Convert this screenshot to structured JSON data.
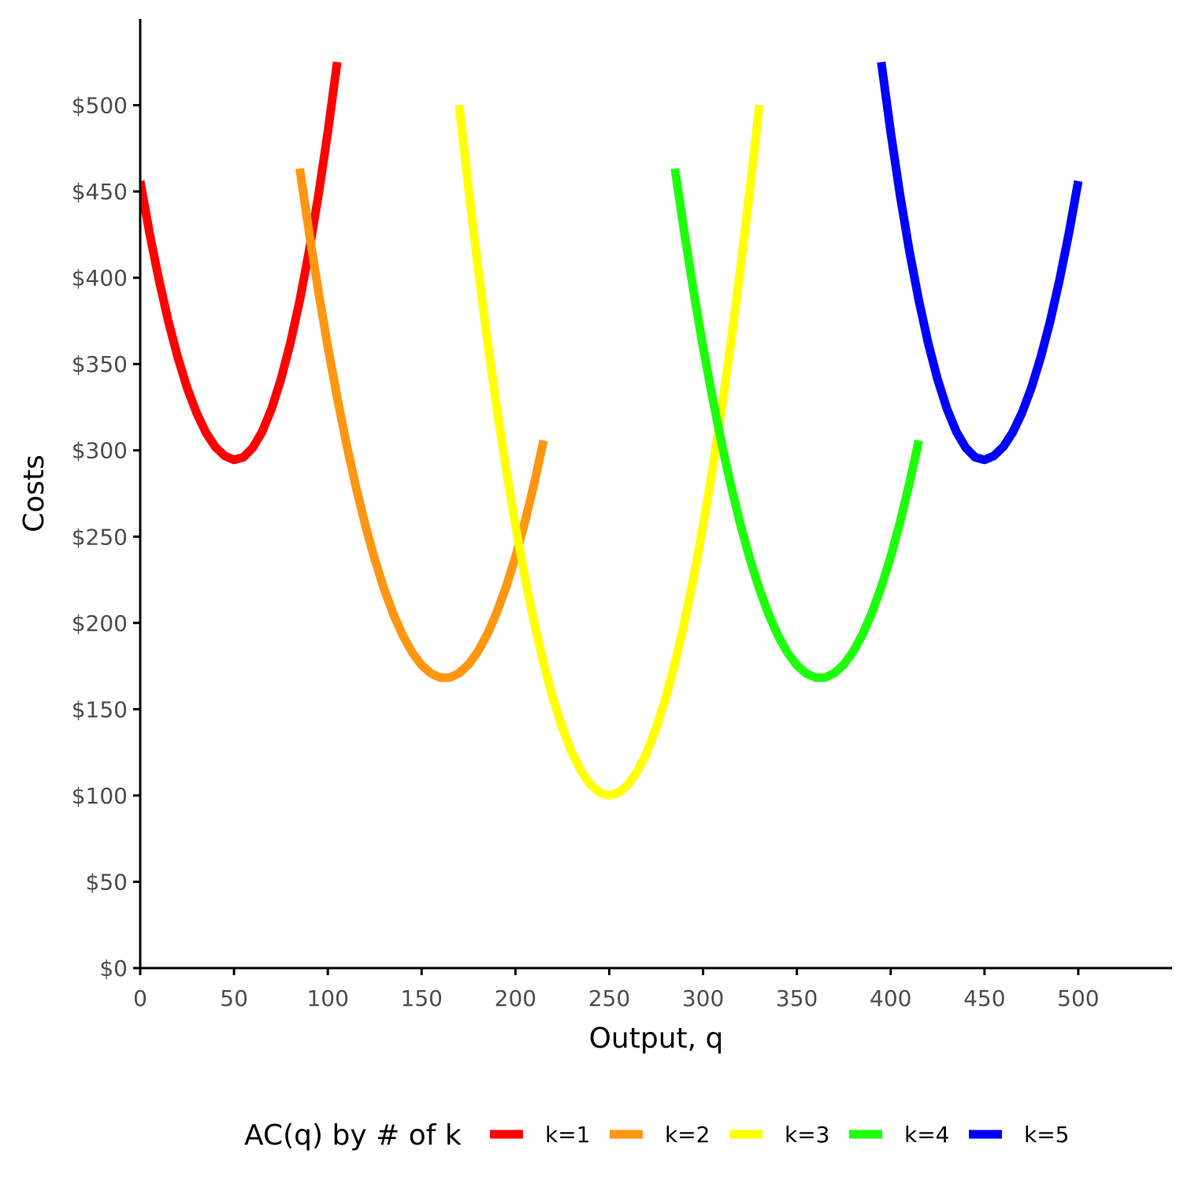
{
  "chart_data": {
    "type": "line",
    "xlabel": "Output, q",
    "ylabel": "Costs",
    "xlim": [
      0,
      550
    ],
    "ylim": [
      0,
      550
    ],
    "x_ticks": [
      0,
      50,
      100,
      150,
      200,
      250,
      300,
      350,
      400,
      450,
      500
    ],
    "x_tick_labels": [
      "0",
      "50",
      "100",
      "150",
      "200",
      "250",
      "300",
      "350",
      "400",
      "450",
      "500"
    ],
    "y_ticks": [
      0,
      50,
      100,
      150,
      200,
      250,
      300,
      350,
      400,
      450,
      500
    ],
    "y_tick_labels": [
      "$0",
      "$50",
      "$100",
      "$150",
      "$200",
      "$250",
      "$300",
      "$350",
      "$400",
      "$450",
      "$500"
    ],
    "grid": false,
    "legend": {
      "title": "AC(q) by # of k",
      "position": "bottom"
    },
    "series": [
      {
        "name": "k=1",
        "color": "#ff0000",
        "x": [
          0,
          5,
          10,
          15,
          20,
          25,
          30,
          35,
          40,
          45,
          50,
          55,
          60,
          65,
          70,
          75,
          80,
          85,
          90,
          95,
          100,
          105
        ],
        "y": [
          456,
          425.8,
          398.8,
          374.8,
          354,
          336.3,
          321.8,
          310.3,
          302,
          296.8,
          294.5,
          296,
          301.5,
          310.8,
          324,
          341.1,
          362,
          386.8,
          415.5,
          448,
          484.5,
          525
        ]
      },
      {
        "name": "k=2",
        "color": "#ff9612",
        "x": [
          85,
          90,
          95,
          100,
          105,
          110,
          115,
          120,
          125,
          130,
          135,
          140,
          145,
          150,
          155,
          160,
          165,
          170,
          175,
          180,
          185,
          190,
          195,
          200,
          205,
          210,
          215
        ],
        "y": [
          463.3,
          426.4,
          392,
          360,
          330.5,
          303.4,
          278.8,
          256.6,
          236.9,
          219.7,
          204.9,
          192.6,
          182.8,
          175.5,
          170.7,
          168.3,
          168.3,
          170.9,
          175.9,
          183.4,
          193.4,
          205.9,
          220.8,
          238.3,
          258.3,
          280.8,
          305.7
        ]
      },
      {
        "name": "k=3",
        "color": "#ffff00",
        "x": [
          170,
          175,
          180,
          185,
          190,
          195,
          200,
          205,
          210,
          215,
          220,
          225,
          230,
          235,
          240,
          245,
          250,
          255,
          260,
          265,
          270,
          275,
          280,
          285,
          290,
          295,
          300,
          305,
          310,
          315,
          320,
          325,
          330
        ],
        "y": [
          500,
          451.6,
          406.3,
          364.1,
          325,
          289.1,
          256.3,
          226.6,
          200,
          176.6,
          156.3,
          139.1,
          125,
          114.1,
          106.3,
          101.6,
          100,
          101.6,
          106.3,
          114.1,
          125,
          139.1,
          156.3,
          176.6,
          200,
          226.6,
          256.3,
          289.1,
          325,
          364.1,
          406.3,
          451.6,
          500
        ]
      },
      {
        "name": "k=4",
        "color": "#1eff0a",
        "x": [
          285,
          290,
          295,
          300,
          305,
          310,
          315,
          320,
          325,
          330,
          335,
          340,
          345,
          350,
          355,
          360,
          365,
          370,
          375,
          380,
          385,
          390,
          395,
          400,
          405,
          410,
          415
        ],
        "y": [
          463.3,
          426.4,
          392,
          360,
          330.5,
          303.4,
          278.8,
          256.6,
          236.9,
          219.7,
          204.9,
          192.6,
          182.8,
          175.5,
          170.7,
          168.3,
          168.3,
          170.9,
          175.9,
          183.4,
          193.4,
          205.9,
          220.8,
          238.3,
          258.3,
          280.8,
          305.7
        ]
      },
      {
        "name": "k=5",
        "color": "#0000ff",
        "x": [
          395,
          400,
          405,
          410,
          415,
          420,
          425,
          430,
          435,
          440,
          445,
          450,
          455,
          460,
          465,
          470,
          475,
          480,
          485,
          490,
          495,
          500
        ],
        "y": [
          525,
          484.5,
          448,
          415.5,
          386.8,
          362,
          341.1,
          324,
          310.8,
          301.5,
          296,
          294.5,
          296.8,
          302,
          310.3,
          321.8,
          336.3,
          354,
          374.8,
          398.8,
          425.8,
          456
        ]
      }
    ]
  }
}
